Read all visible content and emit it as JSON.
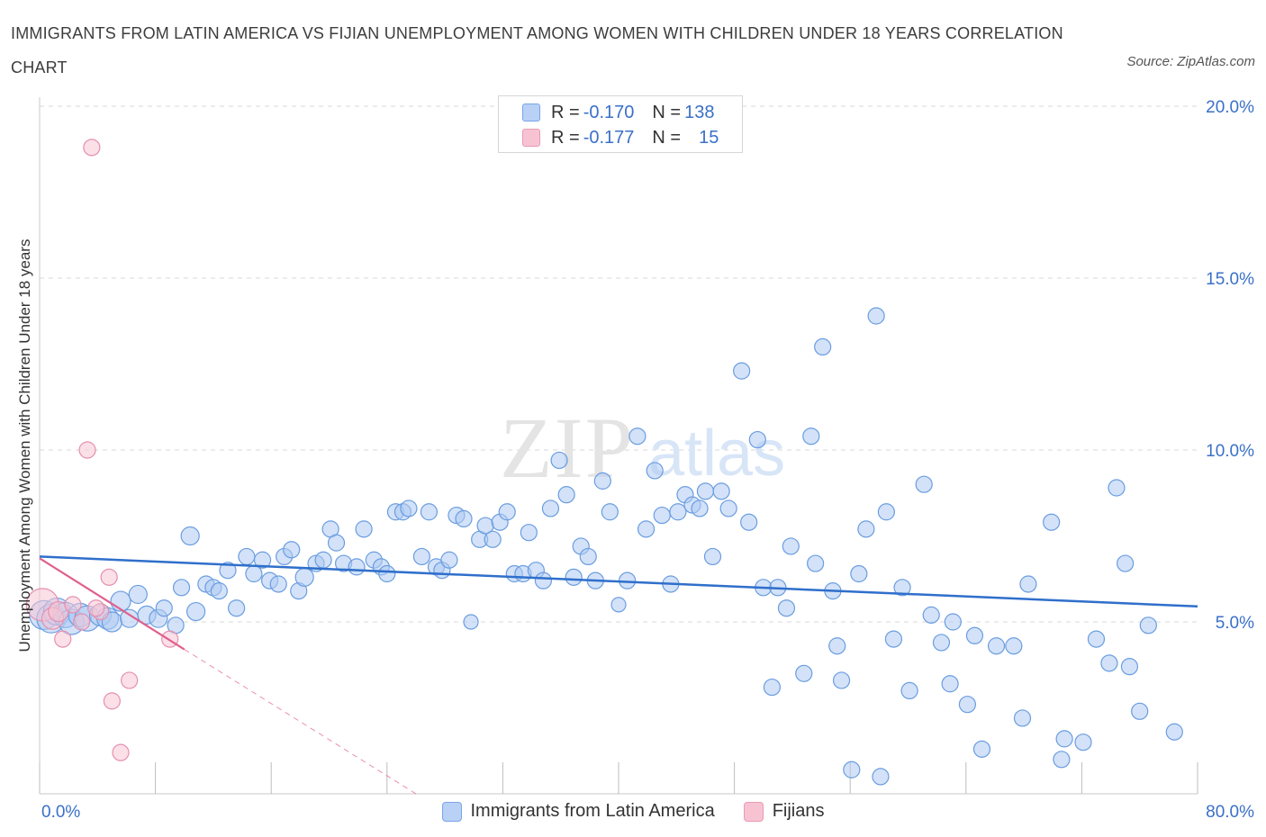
{
  "title": "IMMIGRANTS FROM LATIN AMERICA VS FIJIAN UNEMPLOYMENT AMONG WOMEN WITH CHILDREN UNDER 18 YEARS CORRELATION CHART",
  "source": "Source: ZipAtlas.com",
  "watermark": {
    "zip": "ZIP",
    "atlas": "atlas"
  },
  "legend": {
    "rows": [
      {
        "r_label": "R =",
        "r_value": "-0.170",
        "n_label": "N =",
        "n_value": "138",
        "fill": "#b8d1f5",
        "stroke": "#7aa5e8"
      },
      {
        "r_label": "R =",
        "r_value": "-0.177",
        "n_label": "N =",
        "n_value": "15",
        "fill": "#f7c3d3",
        "stroke": "#e99ab4"
      }
    ]
  },
  "colors": {
    "blue_fill": "#aecbf2",
    "blue_stroke": "#6a9de0",
    "blue_line": "#2f6fcb",
    "pink_fill": "#f8c7d6",
    "pink_stroke": "#e58fb0",
    "pink_line": "#e0608e",
    "axis_label": "#3a70c8",
    "grid": "#dadada"
  },
  "chart_data": {
    "type": "scatter",
    "title": "IMMIGRANTS FROM LATIN AMERICA VS FIJIAN UNEMPLOYMENT AMONG WOMEN WITH CHILDREN UNDER 18 YEARS CORRELATION CHART",
    "xlabel": "",
    "ylabel": "Unemployment Among Women with Children Under 18 years",
    "xlim": [
      0,
      80
    ],
    "ylim": [
      0,
      20
    ],
    "x_tick_labels": [
      {
        "value": 0,
        "label": "0.0%"
      },
      {
        "value": 80,
        "label": "80.0%"
      }
    ],
    "y_tick_labels": [
      {
        "value": 5,
        "label": "5.0%"
      },
      {
        "value": 10,
        "label": "10.0%"
      },
      {
        "value": 15,
        "label": "15.0%"
      },
      {
        "value": 20,
        "label": "20.0%"
      }
    ],
    "grid": true,
    "legend_position": "bottom",
    "series": [
      {
        "name": "Immigrants from Latin America",
        "color": "#aecbf2",
        "trend": {
          "x": [
            0,
            80
          ],
          "y": [
            6.9,
            5.45
          ]
        },
        "points": [
          [
            0.3,
            5.2,
            16
          ],
          [
            0.8,
            5.1,
            16
          ],
          [
            1.2,
            5.3,
            15
          ],
          [
            1.8,
            5.2,
            14
          ],
          [
            2.2,
            5.0,
            14
          ],
          [
            2.8,
            5.2,
            13
          ],
          [
            3.3,
            5.1,
            14
          ],
          [
            4.2,
            5.2,
            12
          ],
          [
            4.7,
            5.1,
            12
          ],
          [
            5.0,
            5.0,
            11
          ],
          [
            5.6,
            5.6,
            11
          ],
          [
            6.2,
            5.1,
            10
          ],
          [
            6.8,
            5.8,
            10
          ],
          [
            7.4,
            5.2,
            10
          ],
          [
            8.2,
            5.1,
            10
          ],
          [
            8.6,
            5.4,
            9
          ],
          [
            9.4,
            4.9,
            9
          ],
          [
            9.8,
            6.0,
            9
          ],
          [
            10.4,
            7.5,
            10
          ],
          [
            10.8,
            5.3,
            10
          ],
          [
            11.5,
            6.1,
            9
          ],
          [
            12.0,
            6.0,
            9
          ],
          [
            12.4,
            5.9,
            9
          ],
          [
            13.0,
            6.5,
            9
          ],
          [
            13.6,
            5.4,
            9
          ],
          [
            14.3,
            6.9,
            9
          ],
          [
            14.8,
            6.4,
            9
          ],
          [
            15.4,
            6.8,
            9
          ],
          [
            15.9,
            6.2,
            9
          ],
          [
            16.5,
            6.1,
            9
          ],
          [
            16.9,
            6.9,
            9
          ],
          [
            17.4,
            7.1,
            9
          ],
          [
            17.9,
            5.9,
            9
          ],
          [
            18.3,
            6.3,
            10
          ],
          [
            19.1,
            6.7,
            9
          ],
          [
            19.6,
            6.8,
            9
          ],
          [
            20.1,
            7.7,
            9
          ],
          [
            20.5,
            7.3,
            9
          ],
          [
            21.0,
            6.7,
            9
          ],
          [
            21.9,
            6.6,
            9
          ],
          [
            22.4,
            7.7,
            9
          ],
          [
            23.1,
            6.8,
            9
          ],
          [
            23.6,
            6.6,
            9
          ],
          [
            24.0,
            6.4,
            9
          ],
          [
            24.6,
            8.2,
            9
          ],
          [
            25.1,
            8.2,
            9
          ],
          [
            25.5,
            8.3,
            9
          ],
          [
            26.4,
            6.9,
            9
          ],
          [
            26.9,
            8.2,
            9
          ],
          [
            27.4,
            6.6,
            9
          ],
          [
            27.8,
            6.5,
            9
          ],
          [
            28.3,
            6.8,
            9
          ],
          [
            28.8,
            8.1,
            9
          ],
          [
            29.3,
            8.0,
            9
          ],
          [
            29.8,
            5.0,
            8
          ],
          [
            30.4,
            7.4,
            9
          ],
          [
            30.8,
            7.8,
            9
          ],
          [
            31.3,
            7.4,
            9
          ],
          [
            31.8,
            7.9,
            9
          ],
          [
            32.3,
            8.2,
            9
          ],
          [
            32.8,
            6.4,
            9
          ],
          [
            33.4,
            6.4,
            9
          ],
          [
            33.8,
            7.6,
            9
          ],
          [
            34.3,
            6.5,
            9
          ],
          [
            34.8,
            6.2,
            9
          ],
          [
            35.3,
            8.3,
            9
          ],
          [
            35.9,
            9.7,
            9
          ],
          [
            36.4,
            8.7,
            9
          ],
          [
            36.9,
            6.3,
            9
          ],
          [
            37.4,
            7.2,
            9
          ],
          [
            37.9,
            6.9,
            9
          ],
          [
            38.4,
            6.2,
            9
          ],
          [
            38.9,
            9.1,
            9
          ],
          [
            39.4,
            8.2,
            9
          ],
          [
            40.0,
            5.5,
            8
          ],
          [
            40.6,
            6.2,
            9
          ],
          [
            41.3,
            10.4,
            9
          ],
          [
            41.9,
            7.7,
            9
          ],
          [
            42.5,
            9.4,
            9
          ],
          [
            43.0,
            8.1,
            9
          ],
          [
            43.6,
            6.1,
            9
          ],
          [
            44.1,
            8.2,
            9
          ],
          [
            44.6,
            8.7,
            9
          ],
          [
            45.1,
            8.4,
            9
          ],
          [
            45.6,
            8.3,
            9
          ],
          [
            46.0,
            8.8,
            9
          ],
          [
            46.5,
            6.9,
            9
          ],
          [
            47.1,
            8.8,
            9
          ],
          [
            47.6,
            8.3,
            9
          ],
          [
            48.5,
            12.3,
            9
          ],
          [
            49.0,
            7.9,
            9
          ],
          [
            49.6,
            10.3,
            9
          ],
          [
            50.0,
            6.0,
            9
          ],
          [
            50.6,
            3.1,
            9
          ],
          [
            51.0,
            6.0,
            9
          ],
          [
            51.6,
            5.4,
            9
          ],
          [
            51.9,
            7.2,
            9
          ],
          [
            52.8,
            3.5,
            9
          ],
          [
            53.3,
            10.4,
            9
          ],
          [
            53.6,
            6.7,
            9
          ],
          [
            54.1,
            13.0,
            9
          ],
          [
            54.8,
            5.9,
            9
          ],
          [
            55.1,
            4.3,
            9
          ],
          [
            55.4,
            3.3,
            9
          ],
          [
            56.1,
            0.7,
            9
          ],
          [
            56.6,
            6.4,
            9
          ],
          [
            57.1,
            7.7,
            9
          ],
          [
            57.8,
            13.9,
            9
          ],
          [
            58.1,
            0.5,
            9
          ],
          [
            58.5,
            8.2,
            9
          ],
          [
            59.0,
            4.5,
            9
          ],
          [
            59.6,
            6.0,
            9
          ],
          [
            60.1,
            3.0,
            9
          ],
          [
            61.1,
            9.0,
            9
          ],
          [
            61.6,
            5.2,
            9
          ],
          [
            62.3,
            4.4,
            9
          ],
          [
            62.9,
            3.2,
            9
          ],
          [
            63.1,
            5.0,
            9
          ],
          [
            64.1,
            2.6,
            9
          ],
          [
            64.6,
            4.6,
            9
          ],
          [
            65.1,
            1.3,
            9
          ],
          [
            66.1,
            4.3,
            9
          ],
          [
            67.3,
            4.3,
            9
          ],
          [
            67.9,
            2.2,
            9
          ],
          [
            68.3,
            6.1,
            9
          ],
          [
            69.9,
            7.9,
            9
          ],
          [
            70.6,
            1.0,
            9
          ],
          [
            70.8,
            1.6,
            9
          ],
          [
            72.1,
            1.5,
            9
          ],
          [
            73.0,
            4.5,
            9
          ],
          [
            73.9,
            3.8,
            9
          ],
          [
            74.4,
            8.9,
            9
          ],
          [
            75.0,
            6.7,
            9
          ],
          [
            75.3,
            3.7,
            9
          ],
          [
            76.0,
            2.4,
            9
          ],
          [
            76.6,
            4.9,
            9
          ],
          [
            78.4,
            1.8,
            9
          ]
        ]
      },
      {
        "name": "Fijians",
        "color": "#f8c7d6",
        "trend": {
          "x": [
            0,
            10
          ],
          "y": [
            6.85,
            4.2
          ]
        },
        "trend_extension": {
          "x": [
            10,
            26
          ],
          "y": [
            4.2,
            0
          ]
        },
        "points": [
          [
            0.2,
            5.5,
            18
          ],
          [
            0.9,
            5.1,
            12
          ],
          [
            1.3,
            5.3,
            11
          ],
          [
            1.6,
            4.5,
            9
          ],
          [
            2.3,
            5.5,
            9
          ],
          [
            2.9,
            5.0,
            9
          ],
          [
            3.6,
            18.8,
            9
          ],
          [
            3.3,
            10.0,
            9
          ],
          [
            4.2,
            5.3,
            9
          ],
          [
            4.8,
            6.3,
            9
          ],
          [
            5.0,
            2.7,
            9
          ],
          [
            5.6,
            1.2,
            9
          ],
          [
            6.2,
            3.3,
            9
          ],
          [
            9.0,
            4.5,
            9
          ],
          [
            3.9,
            5.4,
            9
          ]
        ]
      }
    ]
  }
}
